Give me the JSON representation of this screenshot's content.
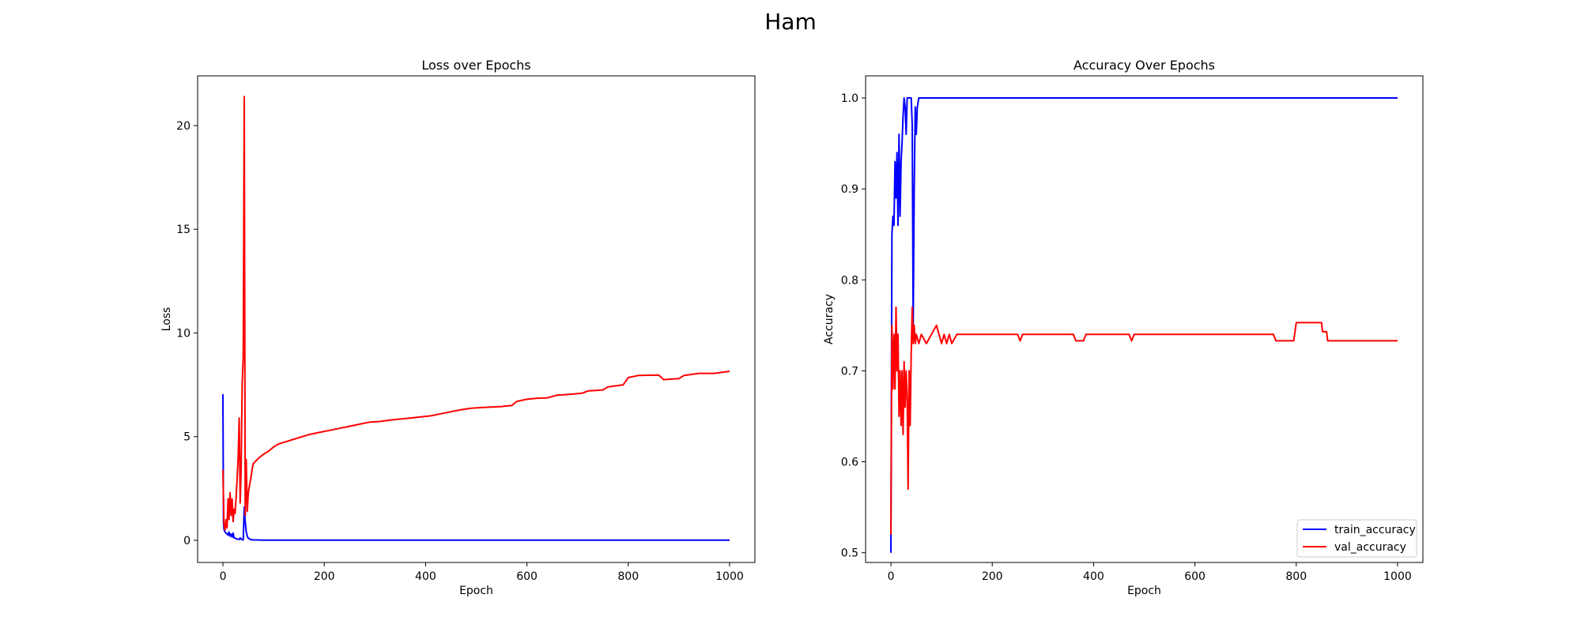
{
  "figure": {
    "suptitle": "Ham"
  },
  "chart_data": [
    {
      "type": "line",
      "title": "Loss over Epochs",
      "xlabel": "Epoch",
      "ylabel": "Loss",
      "xlim": [
        -50,
        1050
      ],
      "ylim": [
        -1.07,
        22.4
      ],
      "xticks": [
        0,
        200,
        400,
        600,
        800,
        1000
      ],
      "yticks": [
        0,
        5,
        10,
        15,
        20
      ],
      "grid": false,
      "legend": "none",
      "series": [
        {
          "color": "#0000ff",
          "points": [
            [
              0,
              7.05
            ],
            [
              1,
              0.9
            ],
            [
              2,
              0.55
            ],
            [
              4,
              0.4
            ],
            [
              6,
              0.35
            ],
            [
              8,
              0.3
            ],
            [
              10,
              0.25
            ],
            [
              12,
              0.4
            ],
            [
              14,
              0.2
            ],
            [
              16,
              0.3
            ],
            [
              18,
              0.15
            ],
            [
              20,
              0.35
            ],
            [
              22,
              0.12
            ],
            [
              24,
              0.1
            ],
            [
              26,
              0.08
            ],
            [
              28,
              0.06
            ],
            [
              30,
              0.05
            ],
            [
              32,
              0.04
            ],
            [
              34,
              0.12
            ],
            [
              36,
              0.05
            ],
            [
              38,
              0.03
            ],
            [
              40,
              0.02
            ],
            [
              42,
              1.6
            ],
            [
              44,
              0.9
            ],
            [
              46,
              0.4
            ],
            [
              48,
              0.2
            ],
            [
              50,
              0.1
            ],
            [
              55,
              0.03
            ],
            [
              60,
              0.02
            ],
            [
              80,
              0.01
            ],
            [
              100,
              0.01
            ],
            [
              200,
              0.01
            ],
            [
              400,
              0.01
            ],
            [
              600,
              0.01
            ],
            [
              800,
              0.01
            ],
            [
              1000,
              0.01
            ]
          ]
        },
        {
          "color": "#ff0000",
          "points": [
            [
              0,
              3.4
            ],
            [
              2,
              0.8
            ],
            [
              4,
              0.5
            ],
            [
              6,
              1.0
            ],
            [
              8,
              0.6
            ],
            [
              10,
              2.0
            ],
            [
              12,
              1.0
            ],
            [
              14,
              2.3
            ],
            [
              16,
              1.2
            ],
            [
              18,
              2.0
            ],
            [
              20,
              0.9
            ],
            [
              22,
              1.5
            ],
            [
              24,
              1.3
            ],
            [
              26,
              2.1
            ],
            [
              28,
              3.0
            ],
            [
              30,
              4.0
            ],
            [
              32,
              5.9
            ],
            [
              34,
              1.8
            ],
            [
              36,
              3.5
            ],
            [
              38,
              7.6
            ],
            [
              40,
              8.8
            ],
            [
              42,
              21.4
            ],
            [
              44,
              1.2
            ],
            [
              46,
              3.9
            ],
            [
              48,
              1.4
            ],
            [
              50,
              2.3
            ],
            [
              52,
              2.6
            ],
            [
              55,
              3.0
            ],
            [
              58,
              3.5
            ],
            [
              60,
              3.7
            ],
            [
              70,
              3.95
            ],
            [
              80,
              4.15
            ],
            [
              90,
              4.3
            ],
            [
              100,
              4.5
            ],
            [
              110,
              4.65
            ],
            [
              130,
              4.8
            ],
            [
              150,
              4.95
            ],
            [
              170,
              5.1
            ],
            [
              190,
              5.2
            ],
            [
              210,
              5.3
            ],
            [
              230,
              5.4
            ],
            [
              250,
              5.5
            ],
            [
              270,
              5.6
            ],
            [
              290,
              5.7
            ],
            [
              310,
              5.73
            ],
            [
              330,
              5.8
            ],
            [
              350,
              5.85
            ],
            [
              370,
              5.9
            ],
            [
              390,
              5.95
            ],
            [
              410,
              6.0
            ],
            [
              430,
              6.1
            ],
            [
              450,
              6.2
            ],
            [
              470,
              6.3
            ],
            [
              490,
              6.37
            ],
            [
              510,
              6.4
            ],
            [
              550,
              6.45
            ],
            [
              570,
              6.5
            ],
            [
              580,
              6.7
            ],
            [
              600,
              6.8
            ],
            [
              620,
              6.85
            ],
            [
              640,
              6.87
            ],
            [
              660,
              7.0
            ],
            [
              690,
              7.05
            ],
            [
              710,
              7.1
            ],
            [
              720,
              7.2
            ],
            [
              750,
              7.25
            ],
            [
              760,
              7.4
            ],
            [
              790,
              7.5
            ],
            [
              800,
              7.85
            ],
            [
              820,
              7.95
            ],
            [
              860,
              7.97
            ],
            [
              870,
              7.75
            ],
            [
              900,
              7.8
            ],
            [
              910,
              7.95
            ],
            [
              940,
              8.05
            ],
            [
              970,
              8.05
            ],
            [
              1000,
              8.15
            ]
          ]
        }
      ]
    },
    {
      "type": "line",
      "title": "Accuracy Over Epochs",
      "xlabel": "Epoch",
      "ylabel": "Accuracy",
      "xlim": [
        -50,
        1050
      ],
      "ylim": [
        0.4893,
        1.0243
      ],
      "xticks": [
        0,
        200,
        400,
        600,
        800,
        1000
      ],
      "yticks": [
        0.5,
        0.6,
        0.7,
        0.8,
        0.9,
        1.0
      ],
      "grid": false,
      "legend": "lower-right",
      "series": [
        {
          "name": "train_accuracy",
          "color": "#0000ff",
          "points": [
            [
              0,
              0.5
            ],
            [
              2,
              0.85
            ],
            [
              4,
              0.87
            ],
            [
              6,
              0.86
            ],
            [
              8,
              0.93
            ],
            [
              10,
              0.89
            ],
            [
              12,
              0.94
            ],
            [
              14,
              0.86
            ],
            [
              16,
              0.96
            ],
            [
              18,
              0.87
            ],
            [
              20,
              0.93
            ],
            [
              22,
              0.95
            ],
            [
              24,
              0.98
            ],
            [
              26,
              1.0
            ],
            [
              28,
              0.99
            ],
            [
              30,
              0.96
            ],
            [
              32,
              1.0
            ],
            [
              34,
              1.0
            ],
            [
              36,
              1.0
            ],
            [
              38,
              1.0
            ],
            [
              40,
              1.0
            ],
            [
              42,
              0.97
            ],
            [
              44,
              0.75
            ],
            [
              46,
              0.9
            ],
            [
              48,
              0.99
            ],
            [
              50,
              0.96
            ],
            [
              52,
              0.99
            ],
            [
              55,
              1.0
            ],
            [
              60,
              1.0
            ],
            [
              100,
              1.0
            ],
            [
              200,
              1.0
            ],
            [
              400,
              1.0
            ],
            [
              600,
              1.0
            ],
            [
              800,
              1.0
            ],
            [
              1000,
              1.0
            ]
          ]
        },
        {
          "name": "val_accuracy",
          "color": "#ff0000",
          "points": [
            [
              0,
              0.52
            ],
            [
              2,
              0.75
            ],
            [
              4,
              0.68
            ],
            [
              6,
              0.74
            ],
            [
              8,
              0.68
            ],
            [
              10,
              0.77
            ],
            [
              12,
              0.7
            ],
            [
              14,
              0.74
            ],
            [
              16,
              0.65
            ],
            [
              18,
              0.7
            ],
            [
              20,
              0.64
            ],
            [
              22,
              0.7
            ],
            [
              24,
              0.63
            ],
            [
              26,
              0.71
            ],
            [
              28,
              0.66
            ],
            [
              30,
              0.7
            ],
            [
              32,
              0.67
            ],
            [
              34,
              0.57
            ],
            [
              36,
              0.7
            ],
            [
              38,
              0.64
            ],
            [
              40,
              0.72
            ],
            [
              42,
              0.77
            ],
            [
              44,
              0.73
            ],
            [
              46,
              0.75
            ],
            [
              48,
              0.73
            ],
            [
              50,
              0.74
            ],
            [
              55,
              0.73
            ],
            [
              60,
              0.74
            ],
            [
              70,
              0.73
            ],
            [
              80,
              0.74
            ],
            [
              90,
              0.75
            ],
            [
              95,
              0.74
            ],
            [
              100,
              0.73
            ],
            [
              105,
              0.74
            ],
            [
              110,
              0.73
            ],
            [
              115,
              0.74
            ],
            [
              120,
              0.73
            ],
            [
              130,
              0.74
            ],
            [
              250,
              0.74
            ],
            [
              255,
              0.733
            ],
            [
              260,
              0.74
            ],
            [
              360,
              0.74
            ],
            [
              365,
              0.733
            ],
            [
              380,
              0.733
            ],
            [
              385,
              0.74
            ],
            [
              470,
              0.74
            ],
            [
              475,
              0.733
            ],
            [
              480,
              0.74
            ],
            [
              755,
              0.74
            ],
            [
              760,
              0.733
            ],
            [
              795,
              0.733
            ],
            [
              800,
              0.753
            ],
            [
              850,
              0.753
            ],
            [
              852,
              0.743
            ],
            [
              860,
              0.743
            ],
            [
              862,
              0.733
            ],
            [
              1000,
              0.733
            ]
          ]
        }
      ]
    }
  ]
}
